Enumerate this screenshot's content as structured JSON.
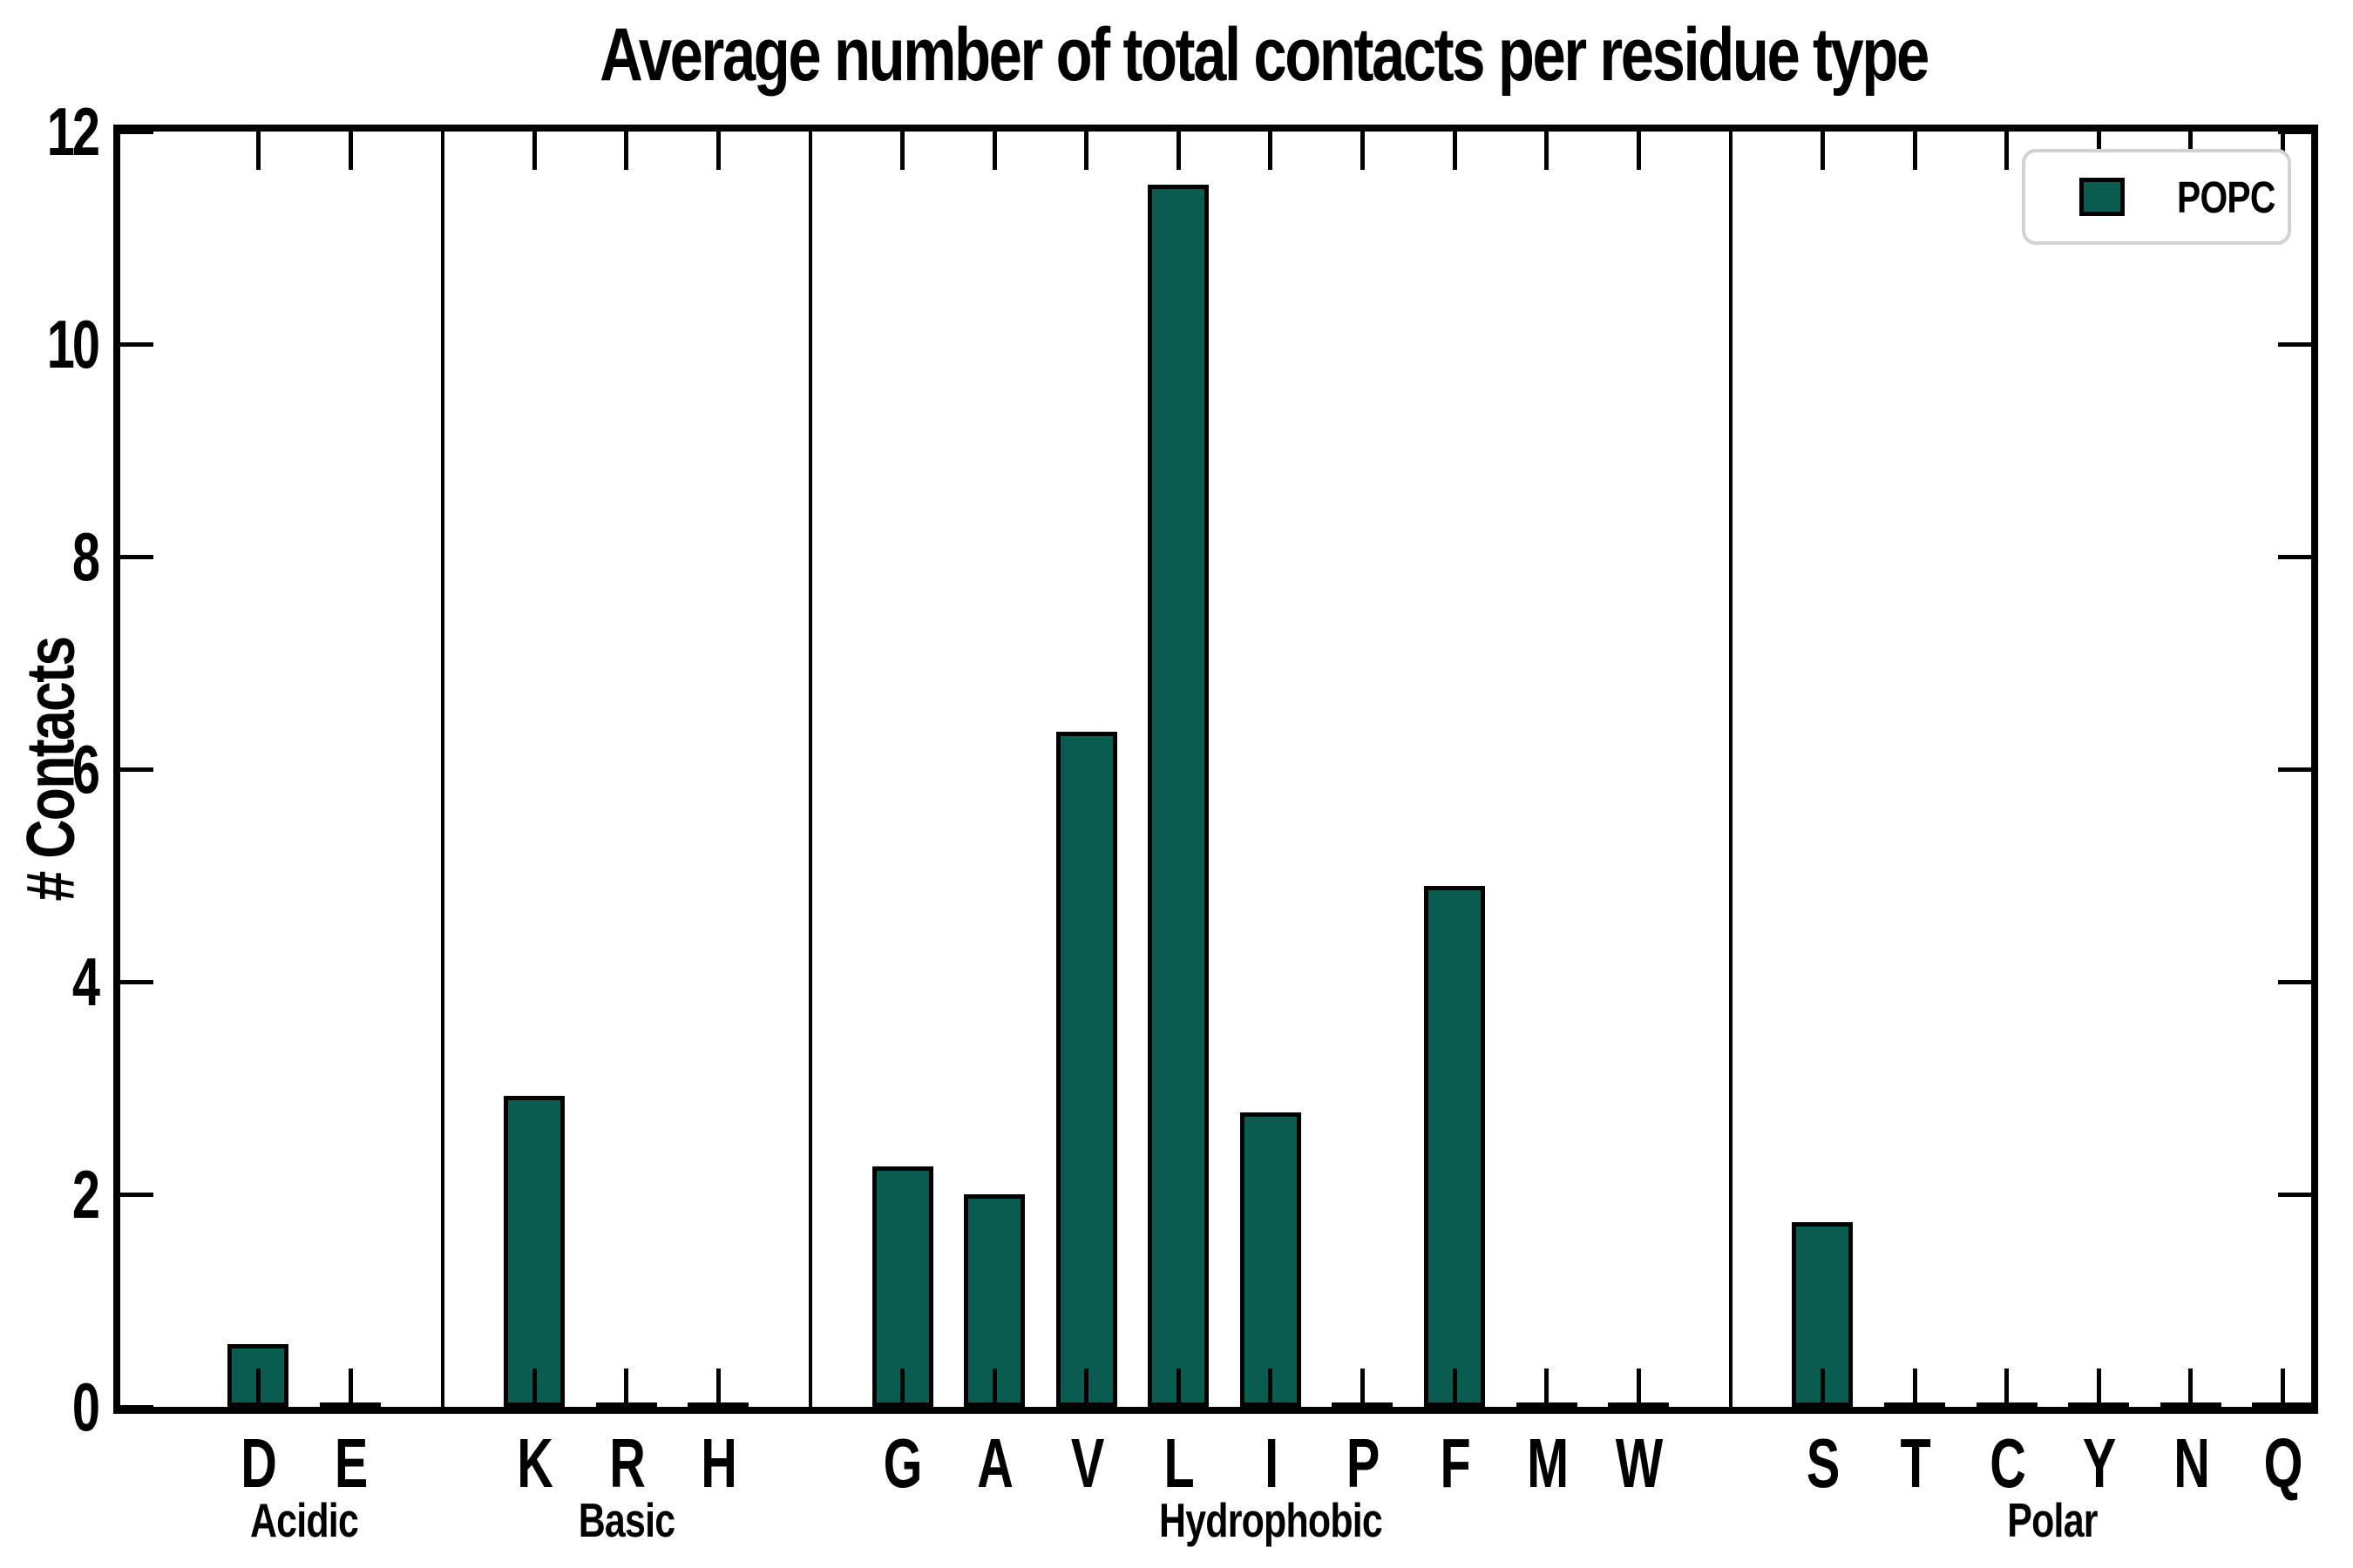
{
  "chart_data": {
    "type": "bar",
    "title": "Average number of total contacts per residue type",
    "ylabel": "# Contacts",
    "xlabel": "",
    "ylim": [
      0,
      12
    ],
    "yticks": [
      0,
      2,
      4,
      6,
      8,
      10,
      12
    ],
    "grid": false,
    "legend": {
      "label": "POPC",
      "position": "upper right"
    },
    "categories": [
      "D",
      "E",
      "K",
      "R",
      "H",
      "G",
      "A",
      "V",
      "L",
      "I",
      "P",
      "F",
      "M",
      "W",
      "S",
      "T",
      "C",
      "Y",
      "N",
      "Q"
    ],
    "values": [
      0.59,
      0,
      2.93,
      0,
      0,
      2.26,
      2.0,
      6.35,
      11.5,
      2.77,
      0,
      4.9,
      0,
      0,
      1.74,
      0,
      0,
      0,
      0,
      0
    ],
    "series": [
      {
        "name": "POPC",
        "values": [
          0.59,
          0,
          2.93,
          0,
          0,
          2.26,
          2.0,
          6.35,
          11.5,
          2.77,
          0,
          4.9,
          0,
          0,
          1.74,
          0,
          0,
          0,
          0,
          0
        ]
      }
    ],
    "groups": [
      {
        "label": "Acidic",
        "residues": [
          "D",
          "E"
        ]
      },
      {
        "label": "Basic",
        "residues": [
          "K",
          "R",
          "H"
        ]
      },
      {
        "label": "Hydrophobic",
        "residues": [
          "G",
          "A",
          "V",
          "L",
          "I",
          "P",
          "F",
          "M",
          "W"
        ]
      },
      {
        "label": "Polar",
        "residues": [
          "S",
          "T",
          "C",
          "Y",
          "N",
          "Q"
        ]
      }
    ],
    "colors": {
      "bar_fill": "#0a5c50",
      "bar_edge": "#000000",
      "axis": "#000000",
      "legend_border": "#d2d2d2",
      "background": "#ffffff"
    }
  }
}
